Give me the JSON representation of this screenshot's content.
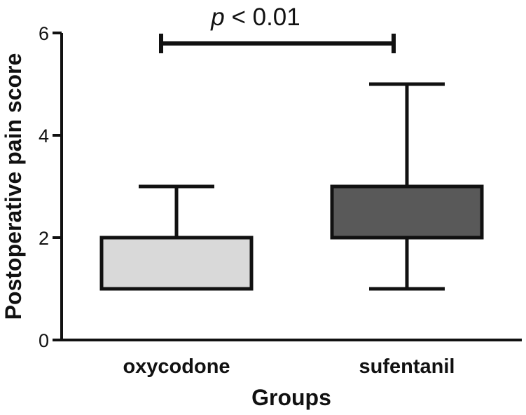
{
  "chart_data": {
    "type": "box",
    "categories": [
      "oxycodone",
      "sufentanil"
    ],
    "boxes": [
      {
        "category": "oxycodone",
        "min": 1,
        "q1": 1,
        "median": 1,
        "q3": 2,
        "max": 3,
        "fill": "#d9d9d9"
      },
      {
        "category": "sufentanil",
        "min": 1,
        "q1": 2,
        "median": 2,
        "q3": 3,
        "max": 5,
        "fill": "#595959"
      }
    ],
    "xlabel": "Groups",
    "ylabel": "Postoperative pain score",
    "ylim": [
      0,
      6
    ],
    "yticks": [
      "0",
      "2",
      "4",
      "6"
    ],
    "grid": false,
    "annotation": {
      "p_symbol": "p",
      "comparison": " < 0.01",
      "between": [
        "oxycodone",
        "sufentanil"
      ]
    }
  }
}
